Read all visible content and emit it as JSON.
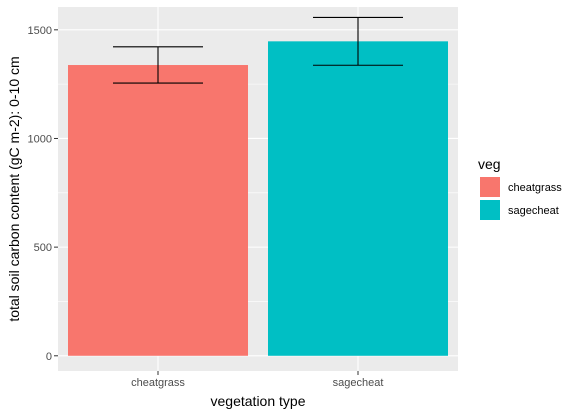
{
  "chart_data": {
    "type": "bar",
    "categories": [
      "cheatgrass",
      "sagecheat"
    ],
    "values": [
      1338,
      1447
    ],
    "error_bars": [
      {
        "low": 1255,
        "high": 1422
      },
      {
        "low": 1337,
        "high": 1557
      }
    ],
    "colors": [
      "#F8766D",
      "#00BFC4"
    ],
    "xlabel": "vegetation type",
    "ylabel": "total soil carbon content (gC m-2): 0-10 cm",
    "ylim": [
      -70,
      1605
    ],
    "yticks": [
      0,
      500,
      1000,
      1500
    ],
    "grid": true,
    "legend": {
      "title": "veg",
      "placement": "right",
      "entries": [
        "cheatgrass",
        "sagecheat"
      ]
    }
  }
}
